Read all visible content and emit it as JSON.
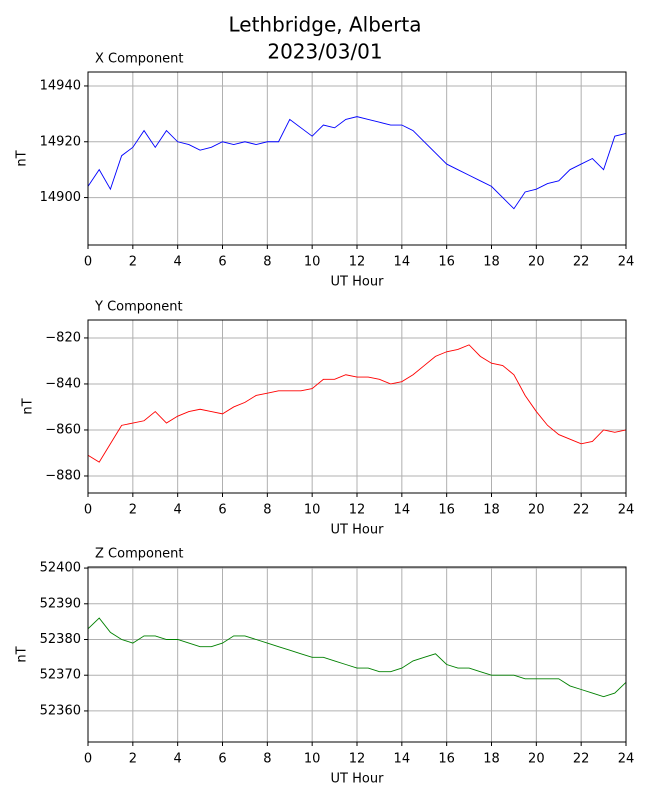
{
  "suptitle": [
    "Lethbridge, Alberta",
    "2023/03/01"
  ],
  "chart_data": [
    {
      "type": "line",
      "title": "X Component",
      "xlabel": "UT Hour",
      "ylabel": "nT",
      "grid": true,
      "color": "#0000ff",
      "xlim": [
        0,
        24
      ],
      "xticks": [
        0,
        2,
        4,
        6,
        8,
        10,
        12,
        14,
        16,
        18,
        20,
        22,
        24
      ],
      "ylim": [
        14883,
        14945
      ],
      "yticks": [
        14900,
        14920,
        14940
      ],
      "x": [
        0,
        0.5,
        1,
        1.5,
        2,
        2.5,
        3,
        3.5,
        4,
        4.5,
        5,
        5.5,
        6,
        6.5,
        7,
        7.5,
        8,
        8.5,
        9,
        9.5,
        10,
        10.5,
        11,
        11.5,
        12,
        12.5,
        13,
        13.5,
        14,
        14.5,
        15,
        15.5,
        16,
        16.5,
        17,
        17.5,
        18,
        18.5,
        19,
        19.5,
        20,
        20.5,
        21,
        21.5,
        22,
        22.5,
        23,
        23.5,
        24
      ],
      "values": [
        14904,
        14910,
        14903,
        14915,
        14918,
        14924,
        14918,
        14924,
        14920,
        14919,
        14917,
        14918,
        14920,
        14919,
        14920,
        14919,
        14920,
        14920,
        14928,
        14925,
        14922,
        14926,
        14925,
        14928,
        14929,
        14928,
        14927,
        14926,
        14926,
        14924,
        14920,
        14916,
        14912,
        14910,
        14908,
        14906,
        14904,
        14900,
        14896,
        14902,
        14903,
        14905,
        14906,
        14910,
        14912,
        14914,
        14910,
        14922,
        14923
      ]
    },
    {
      "type": "line",
      "title": "Y Component",
      "xlabel": "UT Hour",
      "ylabel": "nT",
      "grid": true,
      "color": "#ff0000",
      "xlim": [
        0,
        24
      ],
      "xticks": [
        0,
        2,
        4,
        6,
        8,
        10,
        12,
        14,
        16,
        18,
        20,
        22,
        24
      ],
      "ylim": [
        -887.4,
        -812.2
      ],
      "yticks": [
        {
          "value": -880,
          "label": "−880"
        },
        {
          "value": -860,
          "label": "−860"
        },
        {
          "value": -840,
          "label": "−840"
        },
        {
          "value": -820,
          "label": "−820"
        }
      ],
      "x": [
        0,
        0.5,
        1,
        1.5,
        2,
        2.5,
        3,
        3.5,
        4,
        4.5,
        5,
        5.5,
        6,
        6.5,
        7,
        7.5,
        8,
        8.5,
        9,
        9.5,
        10,
        10.5,
        11,
        11.5,
        12,
        12.5,
        13,
        13.5,
        14,
        14.5,
        15,
        15.5,
        16,
        16.5,
        17,
        17.5,
        18,
        18.5,
        19,
        19.5,
        20,
        20.5,
        21,
        21.5,
        22,
        22.5,
        23,
        23.5,
        24
      ],
      "values": [
        -871,
        -874,
        -866,
        -858,
        -857,
        -856,
        -852,
        -857,
        -854,
        -852,
        -851,
        -852,
        -853,
        -850,
        -848,
        -845,
        -844,
        -843,
        -843,
        -843,
        -842,
        -838,
        -838,
        -836,
        -837,
        -837,
        -838,
        -840,
        -839,
        -836,
        -832,
        -828,
        -826,
        -825,
        -823,
        -828,
        -831,
        -832,
        -836,
        -845,
        -852,
        -858,
        -862,
        -864,
        -866,
        -865,
        -860,
        -861,
        -860
      ]
    },
    {
      "type": "line",
      "title": "Z Component",
      "xlabel": "UT Hour",
      "ylabel": "nT",
      "grid": true,
      "color": "#008000",
      "xlim": [
        0,
        24
      ],
      "xticks": [
        0,
        2,
        4,
        6,
        8,
        10,
        12,
        14,
        16,
        18,
        20,
        22,
        24
      ],
      "ylim": [
        52351.3,
        52400.3
      ],
      "yticks": [
        52360,
        52370,
        52380,
        52390,
        52400
      ],
      "x": [
        0,
        0.5,
        1,
        1.5,
        2,
        2.5,
        3,
        3.5,
        4,
        4.5,
        5,
        5.5,
        6,
        6.5,
        7,
        7.5,
        8,
        8.5,
        9,
        9.5,
        10,
        10.5,
        11,
        11.5,
        12,
        12.5,
        13,
        13.5,
        14,
        14.5,
        15,
        15.5,
        16,
        16.5,
        17,
        17.5,
        18,
        18.5,
        19,
        19.5,
        20,
        20.5,
        21,
        21.5,
        22,
        22.5,
        23,
        23.5,
        24
      ],
      "values": [
        52383,
        52386,
        52382,
        52380,
        52379,
        52381,
        52381,
        52380,
        52380,
        52379,
        52378,
        52378,
        52379,
        52381,
        52381,
        52380,
        52379,
        52378,
        52377,
        52376,
        52375,
        52375,
        52374,
        52373,
        52372,
        52372,
        52371,
        52371,
        52372,
        52374,
        52375,
        52376,
        52373,
        52372,
        52372,
        52371,
        52370,
        52370,
        52370,
        52369,
        52369,
        52369,
        52369,
        52367,
        52366,
        52365,
        52364,
        52365,
        52368
      ]
    }
  ]
}
